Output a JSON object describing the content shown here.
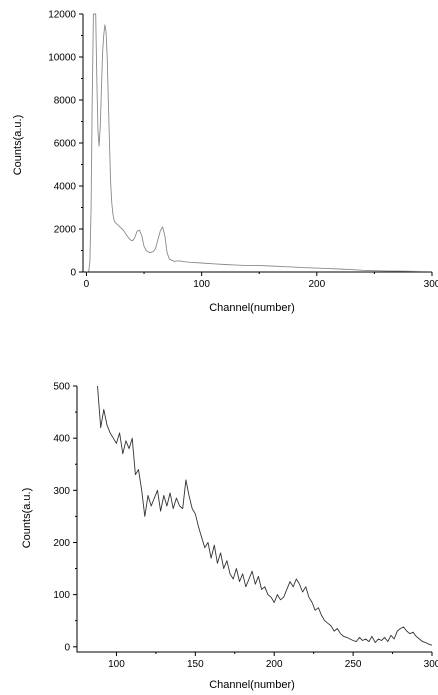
{
  "chart_data": [
    {
      "type": "line",
      "xlabel": "Channel(number)",
      "ylabel": "Counts(a.u.)",
      "xlim": [
        -3,
        300
      ],
      "ylim": [
        0,
        12000
      ],
      "xticks": [
        0,
        100,
        200,
        300
      ],
      "xtick_labels": [
        "0",
        "100",
        "200",
        "300"
      ],
      "yticks": [
        0,
        2000,
        4000,
        6000,
        8000,
        10000,
        12000
      ],
      "ytick_labels": [
        "0",
        "2000",
        "4000",
        "6000",
        "8000",
        "10000",
        "12000"
      ],
      "grid": false,
      "color": "#8a8a8a",
      "series": [
        {
          "x": [
            0,
            2,
            3,
            4,
            5,
            6,
            7,
            8,
            9,
            10,
            11,
            12,
            13,
            14,
            15,
            16,
            17,
            18,
            19,
            20,
            21,
            22,
            23,
            24,
            25,
            26,
            28,
            30,
            32,
            35,
            38,
            40,
            42,
            44,
            46,
            48,
            50,
            52,
            55,
            58,
            60,
            62,
            64,
            66,
            68,
            70,
            72,
            74,
            76,
            80,
            85,
            90,
            100,
            110,
            120,
            130,
            140,
            150,
            160,
            170,
            180,
            190,
            200,
            210,
            220,
            230,
            240,
            250,
            260,
            270,
            280,
            290,
            300
          ],
          "y": [
            0,
            50,
            500,
            3000,
            8000,
            12000,
            12000,
            12000,
            9000,
            6500,
            5850,
            6800,
            8500,
            10200,
            11000,
            11500,
            11200,
            10000,
            8000,
            6000,
            4200,
            3200,
            2700,
            2400,
            2300,
            2250,
            2150,
            2050,
            1950,
            1700,
            1500,
            1450,
            1600,
            1900,
            1950,
            1700,
            1200,
            1000,
            900,
            950,
            1100,
            1500,
            1900,
            2100,
            1700,
            900,
            600,
            550,
            500,
            520,
            480,
            450,
            420,
            380,
            350,
            320,
            300,
            300,
            280,
            250,
            230,
            200,
            180,
            160,
            140,
            110,
            80,
            60,
            50,
            40,
            35,
            30,
            25
          ]
        }
      ]
    },
    {
      "type": "line",
      "xlabel": "Channel(number)",
      "ylabel": "Counts(a.u.)",
      "xlim": [
        75,
        300
      ],
      "ylim": [
        -10,
        500
      ],
      "xticks": [
        100,
        150,
        200,
        250,
        300
      ],
      "xtick_labels": [
        "100",
        "150",
        "200",
        "250",
        "300"
      ],
      "yticks": [
        0,
        100,
        200,
        300,
        400,
        500
      ],
      "ytick_labels": [
        "0",
        "100",
        "200",
        "300",
        "400",
        "500"
      ],
      "grid": false,
      "color": "#333333",
      "series": [
        {
          "x": [
            88,
            90,
            92,
            94,
            96,
            98,
            100,
            102,
            104,
            106,
            108,
            110,
            112,
            114,
            116,
            118,
            120,
            122,
            124,
            126,
            128,
            130,
            132,
            134,
            136,
            138,
            140,
            142,
            144,
            146,
            148,
            150,
            152,
            154,
            156,
            158,
            160,
            162,
            164,
            166,
            168,
            170,
            172,
            174,
            176,
            178,
            180,
            182,
            184,
            186,
            188,
            190,
            192,
            194,
            196,
            198,
            200,
            202,
            204,
            206,
            208,
            210,
            212,
            214,
            216,
            218,
            220,
            222,
            224,
            226,
            228,
            230,
            232,
            234,
            236,
            238,
            240,
            242,
            244,
            246,
            248,
            250,
            252,
            254,
            256,
            258,
            260,
            262,
            264,
            266,
            268,
            270,
            272,
            274,
            276,
            278,
            280,
            282,
            284,
            286,
            288,
            290,
            292,
            294,
            296,
            298,
            300
          ],
          "y": [
            500,
            420,
            455,
            425,
            410,
            400,
            390,
            410,
            370,
            395,
            380,
            400,
            330,
            340,
            300,
            250,
            290,
            270,
            285,
            300,
            260,
            290,
            270,
            295,
            265,
            285,
            270,
            265,
            320,
            290,
            265,
            255,
            230,
            210,
            190,
            200,
            170,
            195,
            160,
            180,
            150,
            165,
            140,
            130,
            150,
            125,
            140,
            115,
            130,
            145,
            120,
            135,
            110,
            115,
            100,
            95,
            85,
            100,
            90,
            95,
            110,
            125,
            115,
            130,
            120,
            105,
            115,
            95,
            85,
            70,
            75,
            60,
            50,
            45,
            40,
            30,
            35,
            25,
            20,
            18,
            15,
            12,
            10,
            18,
            12,
            15,
            10,
            20,
            8,
            15,
            12,
            18,
            10,
            22,
            15,
            30,
            35,
            38,
            30,
            25,
            28,
            20,
            15,
            10,
            8,
            5,
            3
          ]
        }
      ]
    }
  ]
}
